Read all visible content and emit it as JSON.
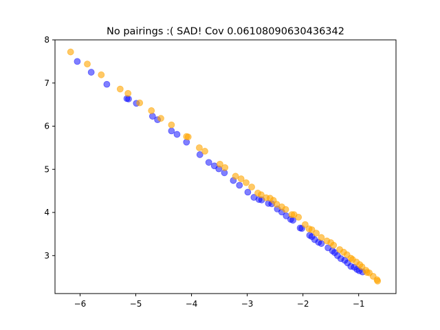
{
  "chart_data": {
    "type": "scatter",
    "title": "No pairings :( SAD! Cov 0.06108090630436342",
    "xlabel": "",
    "ylabel": "",
    "xlim": [
      -6.45,
      -0.33
    ],
    "ylim": [
      2.12,
      8.0
    ],
    "xticks": [
      -6,
      -5,
      -4,
      -3,
      -2,
      -1
    ],
    "xtick_labels": [
      "−6",
      "−5",
      "−4",
      "−3",
      "−2",
      "−1"
    ],
    "yticks": [
      3,
      4,
      5,
      6,
      7,
      8
    ],
    "ytick_labels": [
      "3",
      "4",
      "5",
      "6",
      "7",
      "8"
    ],
    "grid": false,
    "legend": "none",
    "series": [
      {
        "color": "#0000ff",
        "alpha": 0.5,
        "points": [
          [
            -6.05,
            7.5
          ],
          [
            -5.8,
            7.25
          ],
          [
            -5.52,
            6.97
          ],
          [
            -5.16,
            6.64
          ],
          [
            -5.13,
            6.63
          ],
          [
            -4.99,
            6.53
          ],
          [
            -4.7,
            6.23
          ],
          [
            -4.61,
            6.15
          ],
          [
            -4.36,
            5.89
          ],
          [
            -4.26,
            5.81
          ],
          [
            -4.09,
            5.63
          ],
          [
            -3.85,
            5.34
          ],
          [
            -3.69,
            5.16
          ],
          [
            -3.59,
            5.08
          ],
          [
            -3.51,
            5.01
          ],
          [
            -3.41,
            4.92
          ],
          [
            -3.25,
            4.74
          ],
          [
            -3.14,
            4.63
          ],
          [
            -2.99,
            4.47
          ],
          [
            -2.88,
            4.35
          ],
          [
            -2.79,
            4.3
          ],
          [
            -2.74,
            4.29
          ],
          [
            -2.62,
            4.21
          ],
          [
            -2.56,
            4.2
          ],
          [
            -2.46,
            4.08
          ],
          [
            -2.38,
            4.01
          ],
          [
            -2.3,
            3.92
          ],
          [
            -2.22,
            3.84
          ],
          [
            -2.18,
            3.82
          ],
          [
            -2.05,
            3.64
          ],
          [
            -2.02,
            3.63
          ],
          [
            -1.88,
            3.47
          ],
          [
            -1.84,
            3.44
          ],
          [
            -1.79,
            3.37
          ],
          [
            -1.72,
            3.31
          ],
          [
            -1.67,
            3.28
          ],
          [
            -1.55,
            3.18
          ],
          [
            -1.47,
            3.11
          ],
          [
            -1.43,
            3.07
          ],
          [
            -1.38,
            3.0
          ],
          [
            -1.32,
            2.93
          ],
          [
            -1.25,
            2.89
          ],
          [
            -1.2,
            2.83
          ],
          [
            -1.14,
            2.75
          ],
          [
            -1.08,
            2.73
          ],
          [
            -1.03,
            2.68
          ],
          [
            -0.99,
            2.65
          ],
          [
            -0.93,
            2.62
          ]
        ]
      },
      {
        "color": "#ffa500",
        "alpha": 0.6,
        "points": [
          [
            -6.17,
            7.72
          ],
          [
            -5.87,
            7.44
          ],
          [
            -5.62,
            7.19
          ],
          [
            -5.28,
            6.86
          ],
          [
            -5.14,
            6.76
          ],
          [
            -4.93,
            6.54
          ],
          [
            -4.72,
            6.36
          ],
          [
            -4.55,
            6.18
          ],
          [
            -4.36,
            6.03
          ],
          [
            -4.09,
            5.76
          ],
          [
            -4.06,
            5.75
          ],
          [
            -3.86,
            5.5
          ],
          [
            -3.76,
            5.42
          ],
          [
            -3.49,
            5.12
          ],
          [
            -3.4,
            5.04
          ],
          [
            -3.21,
            4.84
          ],
          [
            -3.11,
            4.78
          ],
          [
            -3.02,
            4.69
          ],
          [
            -2.92,
            4.59
          ],
          [
            -2.81,
            4.45
          ],
          [
            -2.75,
            4.41
          ],
          [
            -2.66,
            4.34
          ],
          [
            -2.59,
            4.33
          ],
          [
            -2.53,
            4.28
          ],
          [
            -2.47,
            4.19
          ],
          [
            -2.38,
            4.13
          ],
          [
            -2.31,
            4.07
          ],
          [
            -2.2,
            3.95
          ],
          [
            -2.16,
            3.95
          ],
          [
            -2.08,
            3.89
          ],
          [
            -1.96,
            3.72
          ],
          [
            -1.89,
            3.62
          ],
          [
            -1.84,
            3.6
          ],
          [
            -1.76,
            3.52
          ],
          [
            -1.67,
            3.42
          ],
          [
            -1.57,
            3.34
          ],
          [
            -1.5,
            3.3
          ],
          [
            -1.45,
            3.24
          ],
          [
            -1.34,
            3.14
          ],
          [
            -1.27,
            3.08
          ],
          [
            -1.21,
            3.02
          ],
          [
            -1.14,
            2.94
          ],
          [
            -1.11,
            2.91
          ],
          [
            -1.04,
            2.85
          ],
          [
            -0.98,
            2.79
          ],
          [
            -0.94,
            2.74
          ],
          [
            -0.87,
            2.66
          ],
          [
            -0.85,
            2.61
          ],
          [
            -0.81,
            2.6
          ],
          [
            -0.74,
            2.52
          ],
          [
            -0.67,
            2.44
          ],
          [
            -0.66,
            2.41
          ]
        ]
      }
    ]
  }
}
